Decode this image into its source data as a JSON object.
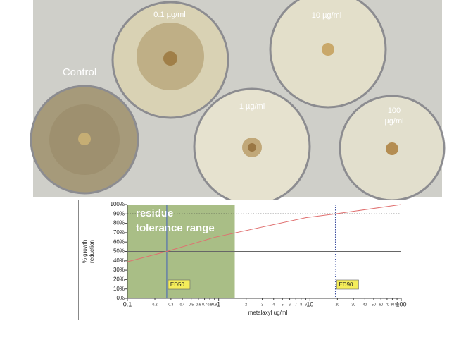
{
  "photo": {
    "labels": [
      "Control",
      "0.1 µg/ml",
      "10 µg/ml",
      "1 µg/ml",
      "100",
      "µg/ml"
    ]
  },
  "chart_data": {
    "type": "line",
    "x": [
      0.1,
      0.27,
      0.9,
      9,
      19,
      100
    ],
    "values": [
      39,
      50,
      65,
      86,
      90,
      100
    ],
    "color": "#e07070",
    "xlabel": "metalaxyl ug/ml",
    "ylabel": [
      "% growth",
      "reduction"
    ],
    "log_x": true,
    "xlim": [
      0.1,
      100
    ],
    "ylim": [
      0,
      100
    ],
    "xticks": [
      0.1,
      0.2,
      0.3,
      0.4,
      0.5,
      0.6,
      0.7,
      0.8,
      0.9,
      1,
      2,
      3,
      4,
      5,
      6,
      7,
      8,
      9,
      10,
      20,
      30,
      40,
      50,
      60,
      70,
      80,
      90,
      100
    ],
    "yticks": [
      {
        "value": 0,
        "label": "0%"
      },
      {
        "value": 10,
        "label": "10%"
      },
      {
        "value": 20,
        "label": "20%"
      },
      {
        "value": 30,
        "label": "30%"
      },
      {
        "value": 40,
        "label": "40%"
      },
      {
        "value": 50,
        "label": "50%"
      },
      {
        "value": 60,
        "label": "60%"
      },
      {
        "value": 70,
        "label": "70%"
      },
      {
        "value": 80,
        "label": "80%"
      },
      {
        "value": 90,
        "label": "90%"
      },
      {
        "value": 100,
        "label": "100%"
      }
    ],
    "shaded_range": [
      0.1,
      1.5
    ],
    "shaded_color": "#a9be86",
    "shaded_label": [
      "residue",
      "tolerance range"
    ],
    "ed50": {
      "label": "ED50",
      "x": 0.27,
      "y": 50
    },
    "ed90": {
      "label": "ED90",
      "x": 19,
      "y": 90
    }
  }
}
